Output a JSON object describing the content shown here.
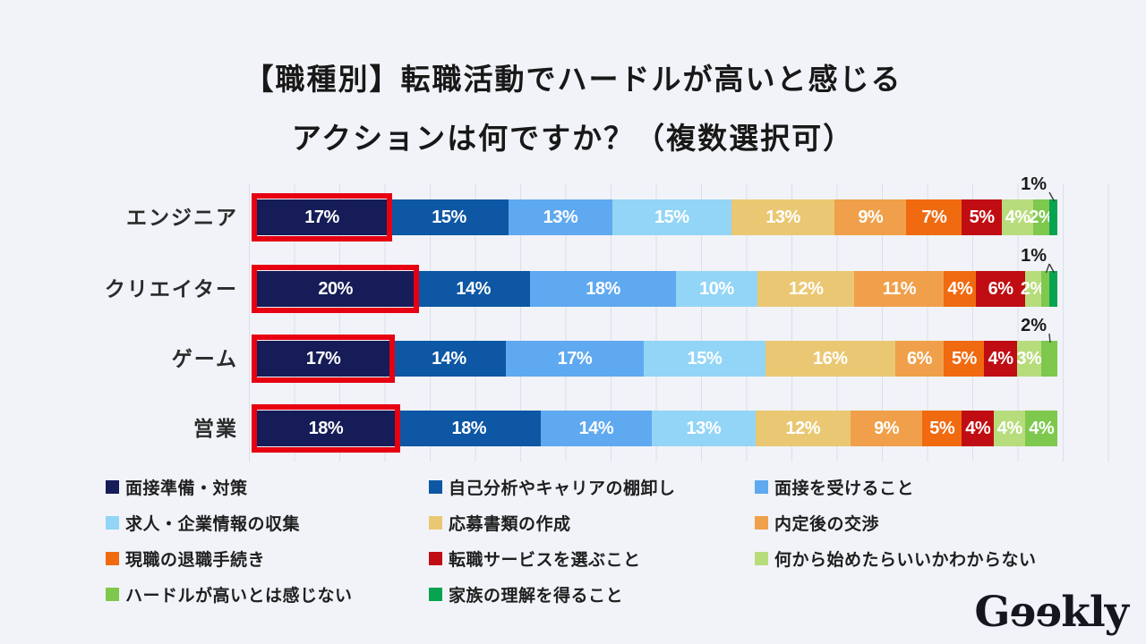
{
  "title": {
    "line1": "【職種別】転職活動でハードルが高いと感じる",
    "line2": "アクションは何ですか？（複数選択可）"
  },
  "colors": {
    "background": "#f1f3f8",
    "gridline": "#dbdfe9",
    "highlight_frame": "#e60012",
    "segment_label_text": "#ffffff",
    "annotation_text": "#1a1a1a"
  },
  "chart_data": {
    "type": "bar",
    "orientation": "horizontal",
    "stacked": true,
    "unit": "%",
    "grid": true,
    "categories": [
      "エンジニア",
      "クリエイター",
      "ゲーム",
      "営業"
    ],
    "series": [
      {
        "name": "面接準備・対策",
        "color": "#161c57",
        "values": [
          17,
          20,
          17,
          18
        ],
        "highlighted": true
      },
      {
        "name": "自己分析やキャリアの棚卸し",
        "color": "#0d57a5",
        "values": [
          15,
          14,
          14,
          18
        ]
      },
      {
        "name": "面接を受けること",
        "color": "#5fa9f0",
        "values": [
          13,
          18,
          17,
          14
        ]
      },
      {
        "name": "求人・企業情報の収集",
        "color": "#93d5f6",
        "values": [
          15,
          10,
          15,
          13
        ]
      },
      {
        "name": "応募書類の作成",
        "color": "#eac873",
        "values": [
          13,
          12,
          16,
          12
        ]
      },
      {
        "name": "内定後の交渉",
        "color": "#f0a04a",
        "values": [
          9,
          11,
          6,
          9
        ]
      },
      {
        "name": "現職の退職手続き",
        "color": "#f06a10",
        "values": [
          7,
          4,
          5,
          5
        ]
      },
      {
        "name": "転職サービスを選ぶこと",
        "color": "#c00d13",
        "values": [
          5,
          6,
          4,
          4
        ]
      },
      {
        "name": "何から始めたらいいかわからない",
        "color": "#b7dc7b",
        "values": [
          4,
          2,
          3,
          4
        ]
      },
      {
        "name": "ハードルが高いとは感じない",
        "color": "#7ec84e",
        "values": [
          2,
          1,
          2,
          4
        ]
      },
      {
        "name": "家族の理解を得ること",
        "color": "#07a350",
        "values": [
          1,
          1,
          0,
          0
        ]
      }
    ],
    "outside_labels": [
      {
        "row": 0,
        "text": "1%",
        "series": [
          10
        ]
      },
      {
        "row": 1,
        "text": "1%",
        "series": [
          9,
          10
        ]
      },
      {
        "row": 2,
        "text": "2%",
        "series": [
          9
        ]
      }
    ],
    "legend_position": "bottom"
  },
  "logo": {
    "text": "Gɘɘkly",
    "alt": "Geekly"
  }
}
